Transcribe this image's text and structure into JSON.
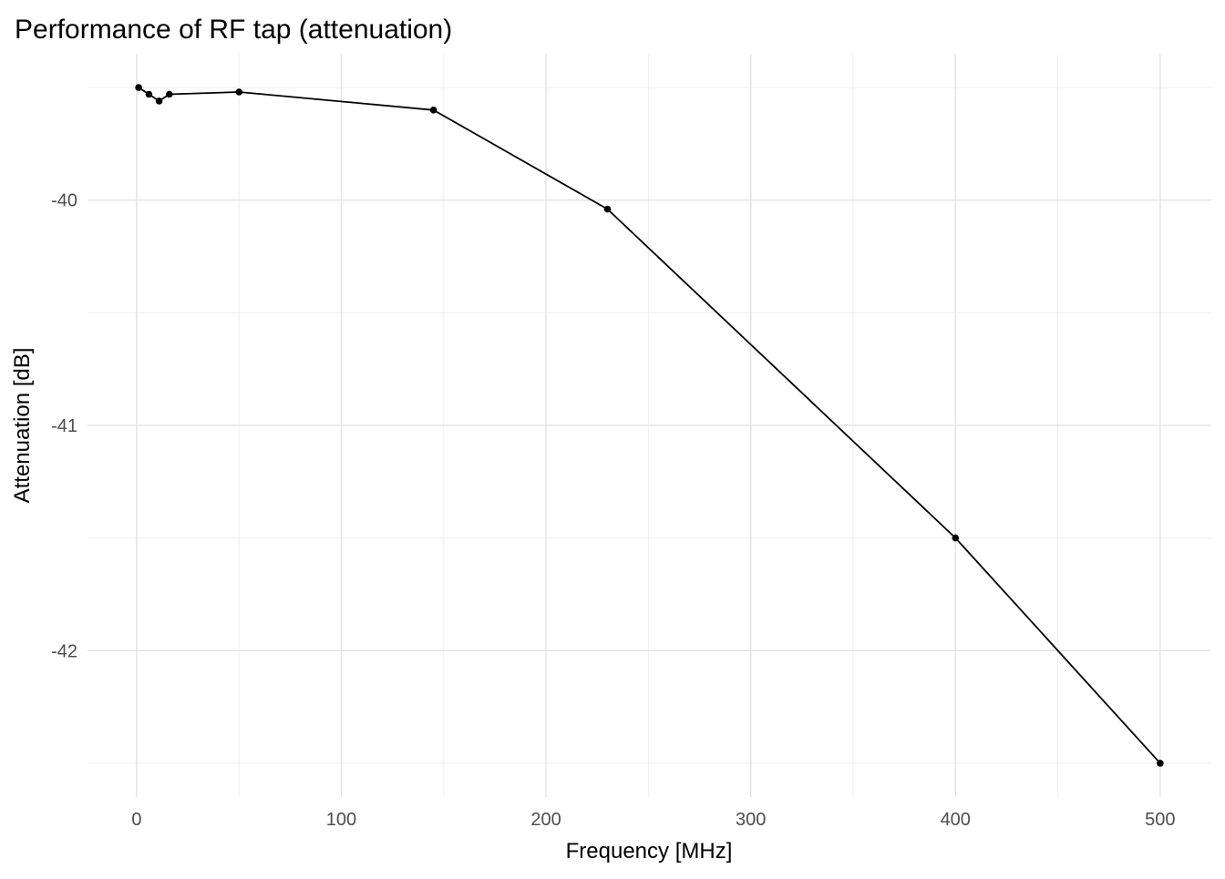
{
  "chart_data": {
    "type": "line",
    "title": "Performance of RF tap (attenuation)",
    "xlabel": "Frequency [MHz]",
    "ylabel": "Attenuation [dB]",
    "series": [
      {
        "name": "attenuation",
        "x": [
          1,
          6,
          11,
          16,
          50,
          145,
          230,
          400,
          500
        ],
        "y": [
          -39.5,
          -39.53,
          -39.56,
          -39.53,
          -39.52,
          -39.6,
          -40.04,
          -41.5,
          -42.5
        ]
      }
    ],
    "xlim": [
      -24,
      525
    ],
    "ylim": [
      -42.65,
      -39.35
    ],
    "x_ticks": [
      0,
      100,
      200,
      300,
      400,
      500
    ],
    "x_tick_labels": [
      "0",
      "100",
      "200",
      "300",
      "400",
      "500"
    ],
    "x_minor_ticks": [
      50,
      150,
      250,
      350,
      450
    ],
    "y_ticks": [
      -40,
      -41,
      -42
    ],
    "y_tick_labels": [
      "-40",
      "-41",
      "-42"
    ],
    "y_minor_ticks": [
      -39.5,
      -40.5,
      -41.5,
      -42.5
    ],
    "grid": true,
    "legend": false,
    "marker": "filled-circle",
    "colors": {
      "background": "#ffffff",
      "grid_major": "#e3e3e3",
      "grid_minor": "#eeeeee",
      "line": "#000000",
      "point": "#000000",
      "tick_label": "#4d4d4d",
      "title": "#000000",
      "axis_title": "#000000"
    }
  }
}
